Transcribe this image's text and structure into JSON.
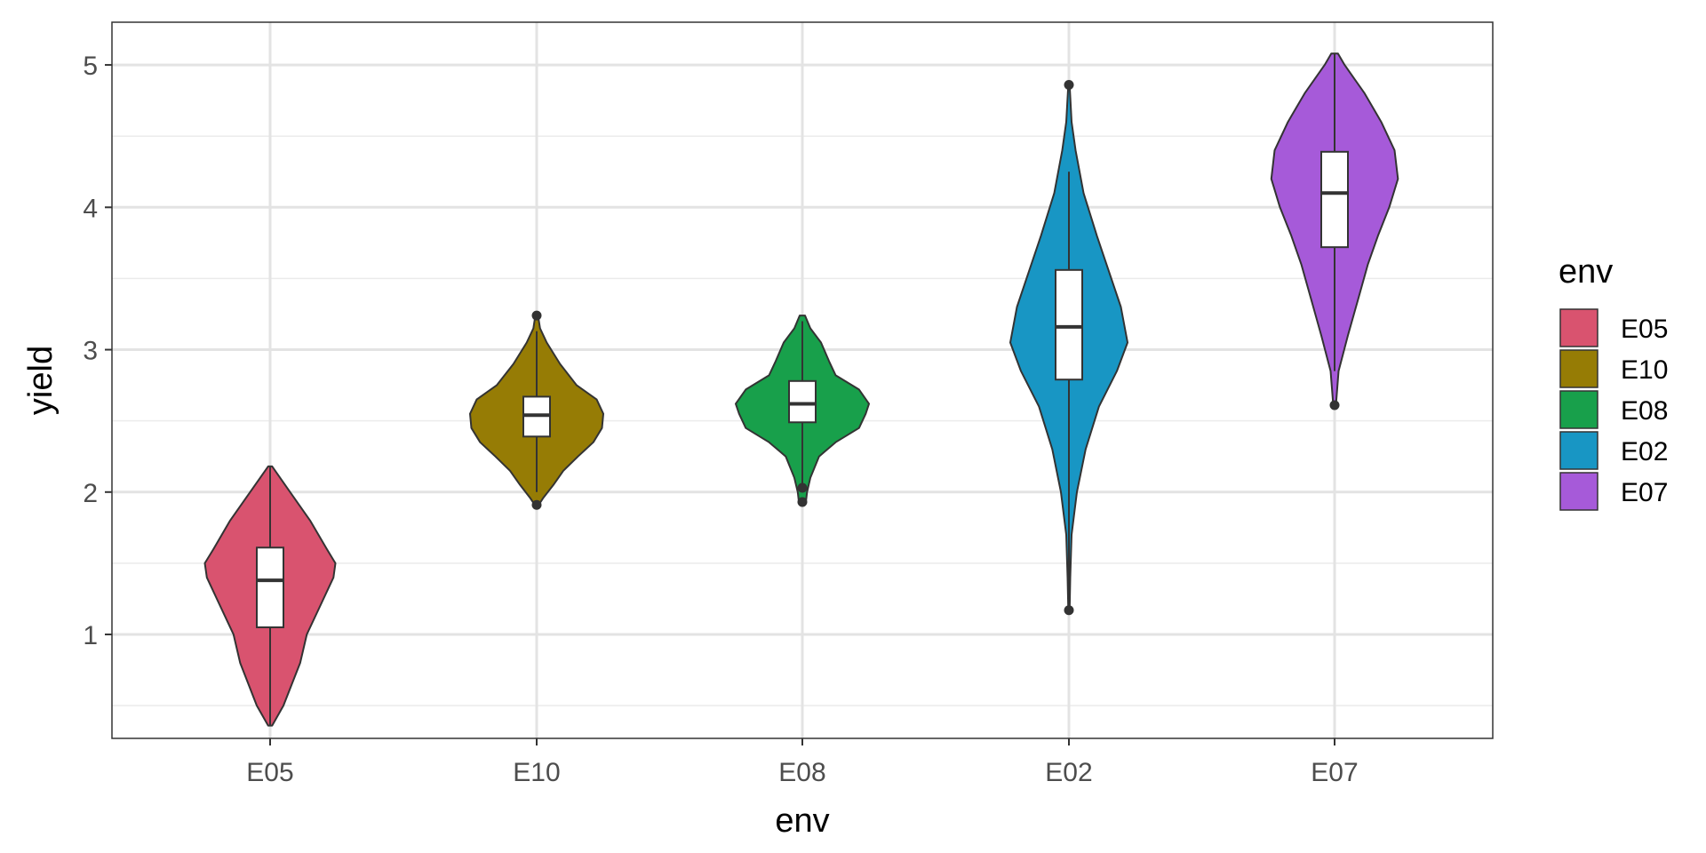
{
  "chart_data": {
    "type": "violin",
    "xlabel": "env",
    "ylabel": "yield",
    "categories": [
      "E05",
      "E10",
      "E08",
      "E02",
      "E07"
    ],
    "ylim": [
      0.27,
      5.3
    ],
    "yticks": [
      "1",
      "2",
      "3",
      "4",
      "5"
    ],
    "grid": true,
    "legend": {
      "title": "env",
      "position": "right"
    },
    "colors": [
      "#D9536F",
      "#967C05",
      "#18A04B",
      "#1896C4",
      "#A65AD9"
    ],
    "series": [
      {
        "category": "E05",
        "box": {
          "q1": 1.05,
          "median": 1.38,
          "q3": 1.61,
          "whisker_low": 0.36,
          "whisker_high": 2.18
        },
        "outliers": [],
        "density": [
          [
            0.36,
            0.03
          ],
          [
            0.5,
            0.2
          ],
          [
            0.8,
            0.45
          ],
          [
            1.0,
            0.55
          ],
          [
            1.2,
            0.75
          ],
          [
            1.4,
            0.95
          ],
          [
            1.5,
            0.98
          ],
          [
            1.6,
            0.85
          ],
          [
            1.8,
            0.6
          ],
          [
            2.0,
            0.3
          ],
          [
            2.18,
            0.03
          ]
        ]
      },
      {
        "category": "E10",
        "box": {
          "q1": 2.39,
          "median": 2.54,
          "q3": 2.67,
          "whisker_low": 2.0,
          "whisker_high": 3.13
        },
        "outliers": [
          1.91,
          3.24
        ],
        "density": [
          [
            1.91,
            0.03
          ],
          [
            1.96,
            0.1
          ],
          [
            2.05,
            0.25
          ],
          [
            2.15,
            0.4
          ],
          [
            2.25,
            0.62
          ],
          [
            2.35,
            0.85
          ],
          [
            2.45,
            0.98
          ],
          [
            2.55,
            1.0
          ],
          [
            2.65,
            0.9
          ],
          [
            2.75,
            0.6
          ],
          [
            2.9,
            0.35
          ],
          [
            3.05,
            0.15
          ],
          [
            3.15,
            0.05
          ],
          [
            3.24,
            0.02
          ]
        ]
      },
      {
        "category": "E08",
        "box": {
          "q1": 2.49,
          "median": 2.62,
          "q3": 2.78,
          "whisker_low": 2.03,
          "whisker_high": 3.2
        },
        "outliers": [
          1.93,
          2.03
        ],
        "density": [
          [
            1.92,
            0.05
          ],
          [
            2.0,
            0.07
          ],
          [
            2.1,
            0.12
          ],
          [
            2.25,
            0.25
          ],
          [
            2.35,
            0.5
          ],
          [
            2.45,
            0.85
          ],
          [
            2.55,
            0.95
          ],
          [
            2.62,
            1.0
          ],
          [
            2.72,
            0.85
          ],
          [
            2.82,
            0.5
          ],
          [
            2.92,
            0.4
          ],
          [
            3.05,
            0.28
          ],
          [
            3.15,
            0.12
          ],
          [
            3.24,
            0.04
          ]
        ]
      },
      {
        "category": "E02",
        "box": {
          "q1": 2.79,
          "median": 3.16,
          "q3": 3.56,
          "whisker_low": 1.17,
          "whisker_high": 4.25
        },
        "outliers": [
          1.17,
          4.86
        ],
        "density": [
          [
            1.17,
            0.01
          ],
          [
            1.4,
            0.02
          ],
          [
            1.7,
            0.04
          ],
          [
            2.0,
            0.12
          ],
          [
            2.3,
            0.25
          ],
          [
            2.6,
            0.45
          ],
          [
            2.85,
            0.72
          ],
          [
            3.05,
            0.88
          ],
          [
            3.3,
            0.78
          ],
          [
            3.55,
            0.6
          ],
          [
            3.8,
            0.42
          ],
          [
            4.1,
            0.22
          ],
          [
            4.4,
            0.1
          ],
          [
            4.6,
            0.04
          ],
          [
            4.86,
            0.01
          ]
        ]
      },
      {
        "category": "E07",
        "box": {
          "q1": 3.72,
          "median": 4.1,
          "q3": 4.39,
          "whisker_low": 2.85,
          "whisker_high": 5.08
        },
        "outliers": [
          2.61
        ],
        "density": [
          [
            2.61,
            0.02
          ],
          [
            2.85,
            0.06
          ],
          [
            3.1,
            0.2
          ],
          [
            3.35,
            0.35
          ],
          [
            3.6,
            0.5
          ],
          [
            3.8,
            0.65
          ],
          [
            4.0,
            0.82
          ],
          [
            4.2,
            0.95
          ],
          [
            4.4,
            0.9
          ],
          [
            4.6,
            0.7
          ],
          [
            4.8,
            0.45
          ],
          [
            5.0,
            0.15
          ],
          [
            5.08,
            0.05
          ]
        ]
      }
    ]
  }
}
